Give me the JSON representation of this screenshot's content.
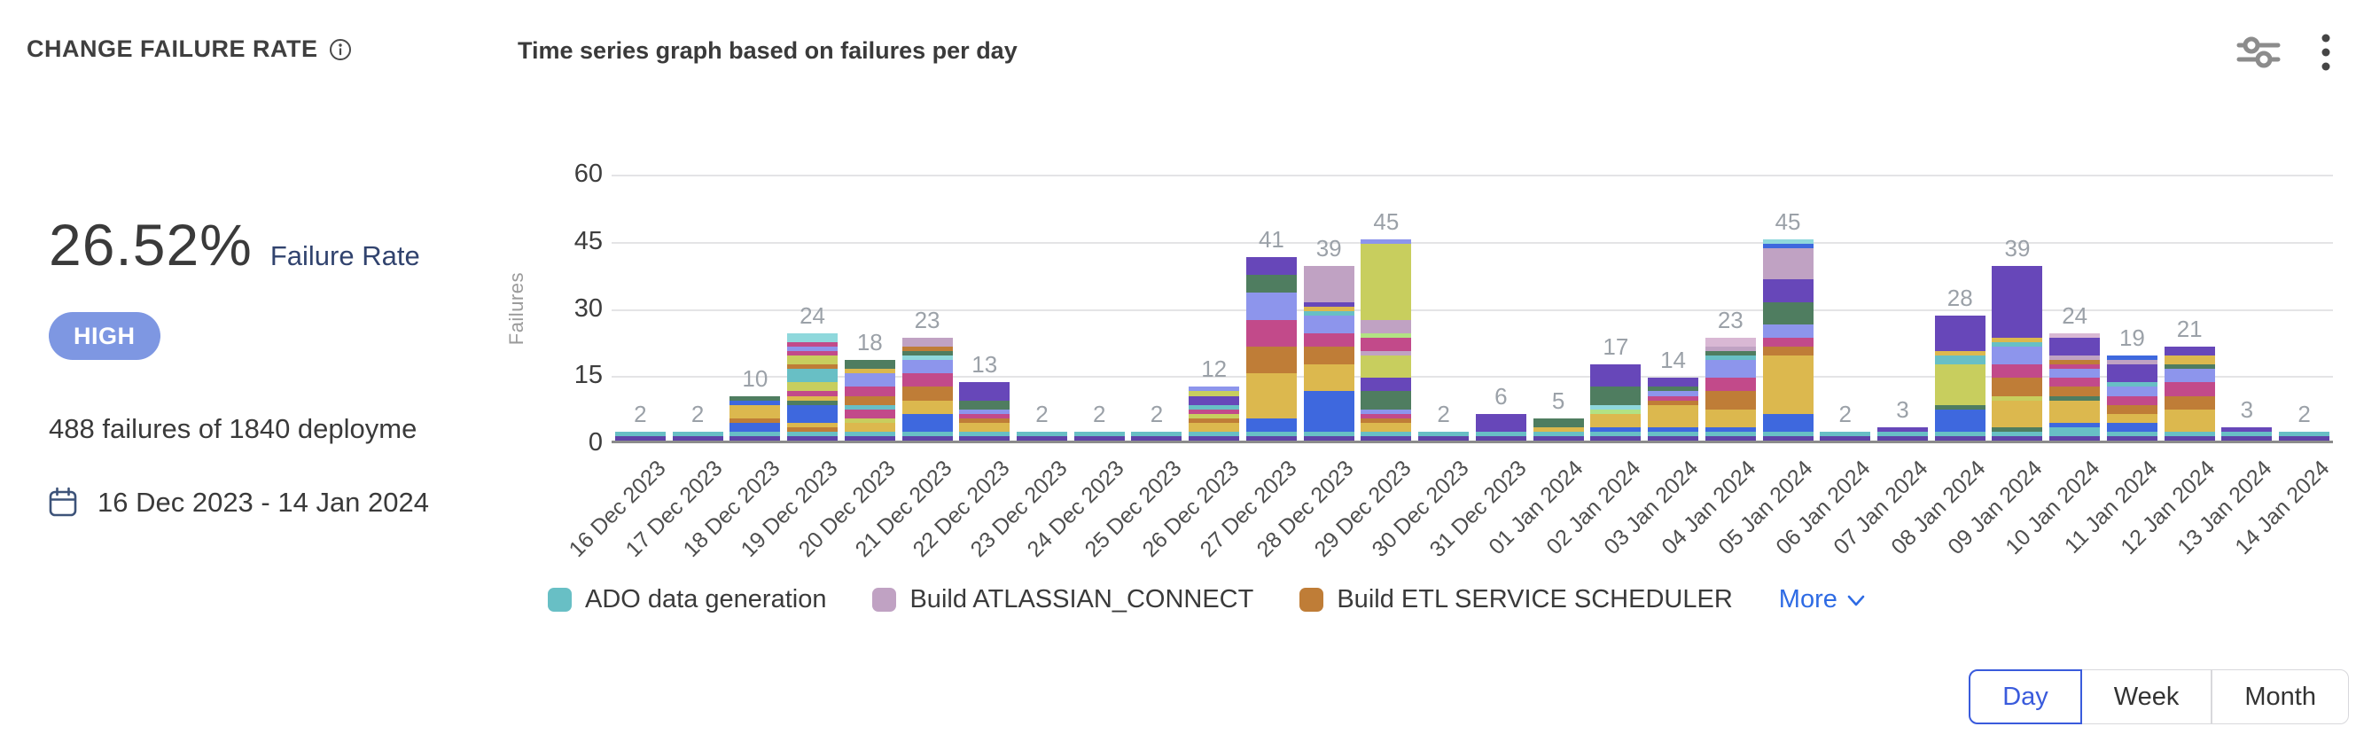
{
  "header": {
    "title": "CHANGE FAILURE RATE",
    "subtitle": "Time series graph based on failures per day"
  },
  "stats": {
    "rate_value": "26.52%",
    "rate_label": "Failure Rate",
    "severity": "HIGH",
    "failures_summary": "488 failures of 1840 deployme",
    "date_range": "16 Dec 2023 - 14 Jan 2024"
  },
  "chart_data": {
    "type": "bar",
    "stacked": true,
    "title": "Time series graph based on failures per day",
    "xlabel": "",
    "ylabel": "Failures",
    "ylim": [
      0,
      60
    ],
    "yticks": [
      0,
      15,
      30,
      45,
      60
    ],
    "grid": true,
    "legend_position": "bottom",
    "categories": [
      "16 Dec 2023",
      "17 Dec 2023",
      "18 Dec 2023",
      "19 Dec 2023",
      "20 Dec 2023",
      "21 Dec 2023",
      "22 Dec 2023",
      "23 Dec 2023",
      "24 Dec 2023",
      "25 Dec 2023",
      "26 Dec 2023",
      "27 Dec 2023",
      "28 Dec 2023",
      "29 Dec 2023",
      "30 Dec 2023",
      "31 Dec 2023",
      "01 Jan 2024",
      "02 Jan 2024",
      "03 Jan 2024",
      "04 Jan 2024",
      "05 Jan 2024",
      "06 Jan 2024",
      "07 Jan 2024",
      "08 Jan 2024",
      "09 Jan 2024",
      "10 Jan 2024",
      "11 Jan 2024",
      "12 Jan 2024",
      "13 Jan 2024",
      "14 Jan 2024"
    ],
    "totals": [
      2,
      2,
      10,
      24,
      18,
      23,
      13,
      2,
      2,
      2,
      12,
      41,
      39,
      45,
      2,
      6,
      5,
      17,
      14,
      23,
      45,
      2,
      3,
      28,
      39,
      24,
      19,
      21,
      3,
      2
    ],
    "palette": [
      "#5f43a8",
      "#68bfc5",
      "#3e68de",
      "#dcb84e",
      "#bf7d37",
      "#c24a8a",
      "#c8ce5e",
      "#4f7d60",
      "#8d95ec",
      "#6747b9",
      "#c0a2c3",
      "#b2e284",
      "#8fd8dc",
      "#d9b8d4"
    ],
    "segments": [
      [
        [
          0,
          1
        ],
        [
          1,
          1
        ]
      ],
      [
        [
          0,
          1
        ],
        [
          1,
          1
        ]
      ],
      [
        [
          0,
          1
        ],
        [
          1,
          1
        ],
        [
          2,
          2
        ],
        [
          4,
          1
        ],
        [
          3,
          3
        ],
        [
          2,
          1
        ],
        [
          7,
          1
        ]
      ],
      [
        [
          0,
          1
        ],
        [
          1,
          1
        ],
        [
          4,
          1
        ],
        [
          3,
          1
        ],
        [
          2,
          4
        ],
        [
          7,
          1
        ],
        [
          3,
          1
        ],
        [
          5,
          1
        ],
        [
          6,
          2
        ],
        [
          1,
          3
        ],
        [
          4,
          1
        ],
        [
          6,
          2
        ],
        [
          5,
          1
        ],
        [
          8,
          1
        ],
        [
          5,
          1
        ],
        [
          12,
          2
        ]
      ],
      [
        [
          0,
          1
        ],
        [
          1,
          1
        ],
        [
          3,
          2
        ],
        [
          6,
          1
        ],
        [
          5,
          2
        ],
        [
          1,
          1
        ],
        [
          4,
          2
        ],
        [
          5,
          2
        ],
        [
          8,
          3
        ],
        [
          3,
          1
        ],
        [
          7,
          2
        ]
      ],
      [
        [
          0,
          1
        ],
        [
          1,
          1
        ],
        [
          2,
          4
        ],
        [
          3,
          3
        ],
        [
          4,
          3
        ],
        [
          5,
          3
        ],
        [
          8,
          3
        ],
        [
          12,
          1
        ],
        [
          7,
          1
        ],
        [
          4,
          1
        ],
        [
          10,
          2
        ]
      ],
      [
        [
          0,
          1
        ],
        [
          1,
          1
        ],
        [
          3,
          2
        ],
        [
          4,
          1
        ],
        [
          5,
          1
        ],
        [
          8,
          1
        ],
        [
          7,
          2
        ],
        [
          9,
          4
        ]
      ],
      [
        [
          0,
          1
        ],
        [
          1,
          1
        ]
      ],
      [
        [
          0,
          1
        ],
        [
          1,
          1
        ]
      ],
      [
        [
          0,
          1
        ],
        [
          1,
          1
        ]
      ],
      [
        [
          0,
          1
        ],
        [
          1,
          1
        ],
        [
          3,
          2
        ],
        [
          4,
          1
        ],
        [
          6,
          1
        ],
        [
          5,
          1
        ],
        [
          1,
          1
        ],
        [
          9,
          2
        ],
        [
          6,
          1
        ],
        [
          8,
          1
        ]
      ],
      [
        [
          0,
          1
        ],
        [
          1,
          1
        ],
        [
          2,
          3
        ],
        [
          3,
          10
        ],
        [
          4,
          6
        ],
        [
          5,
          6
        ],
        [
          8,
          6
        ],
        [
          7,
          4
        ],
        [
          9,
          4
        ]
      ],
      [
        [
          0,
          1
        ],
        [
          1,
          1
        ],
        [
          2,
          9
        ],
        [
          3,
          6
        ],
        [
          4,
          4
        ],
        [
          5,
          3
        ],
        [
          8,
          4
        ],
        [
          1,
          1
        ],
        [
          3,
          1
        ],
        [
          9,
          1
        ],
        [
          10,
          8
        ]
      ],
      [
        [
          0,
          1
        ],
        [
          1,
          1
        ],
        [
          3,
          2
        ],
        [
          4,
          1
        ],
        [
          5,
          1
        ],
        [
          8,
          1
        ],
        [
          7,
          4
        ],
        [
          9,
          3
        ],
        [
          6,
          5
        ],
        [
          10,
          1
        ],
        [
          5,
          3
        ],
        [
          11,
          1
        ],
        [
          10,
          3
        ],
        [
          6,
          17
        ],
        [
          8,
          1
        ]
      ],
      [
        [
          0,
          1
        ],
        [
          1,
          1
        ]
      ],
      [
        [
          0,
          1
        ],
        [
          1,
          1
        ],
        [
          9,
          4
        ]
      ],
      [
        [
          0,
          1
        ],
        [
          1,
          1
        ],
        [
          3,
          1
        ],
        [
          7,
          2
        ]
      ],
      [
        [
          0,
          1
        ],
        [
          1,
          1
        ],
        [
          2,
          1
        ],
        [
          3,
          3
        ],
        [
          11,
          1
        ],
        [
          12,
          1
        ],
        [
          7,
          4
        ],
        [
          9,
          5
        ]
      ],
      [
        [
          0,
          1
        ],
        [
          1,
          1
        ],
        [
          2,
          1
        ],
        [
          3,
          5
        ],
        [
          4,
          1
        ],
        [
          5,
          1
        ],
        [
          8,
          1
        ],
        [
          7,
          1
        ],
        [
          9,
          2
        ]
      ],
      [
        [
          0,
          1
        ],
        [
          1,
          1
        ],
        [
          2,
          1
        ],
        [
          3,
          4
        ],
        [
          4,
          4
        ],
        [
          5,
          3
        ],
        [
          8,
          4
        ],
        [
          1,
          1
        ],
        [
          7,
          1
        ],
        [
          10,
          1
        ],
        [
          13,
          2
        ]
      ],
      [
        [
          0,
          1
        ],
        [
          1,
          1
        ],
        [
          2,
          4
        ],
        [
          3,
          13
        ],
        [
          4,
          2
        ],
        [
          5,
          2
        ],
        [
          8,
          3
        ],
        [
          7,
          5
        ],
        [
          9,
          5
        ],
        [
          10,
          7
        ],
        [
          2,
          1
        ],
        [
          12,
          1
        ]
      ],
      [
        [
          0,
          1
        ],
        [
          1,
          1
        ]
      ],
      [
        [
          0,
          1
        ],
        [
          1,
          1
        ],
        [
          9,
          1
        ]
      ],
      [
        [
          0,
          1
        ],
        [
          1,
          1
        ],
        [
          2,
          5
        ],
        [
          7,
          1
        ],
        [
          6,
          9
        ],
        [
          1,
          2
        ],
        [
          3,
          1
        ],
        [
          9,
          8
        ]
      ],
      [
        [
          0,
          1
        ],
        [
          1,
          1
        ],
        [
          7,
          1
        ],
        [
          3,
          6
        ],
        [
          6,
          1
        ],
        [
          4,
          4
        ],
        [
          5,
          3
        ],
        [
          8,
          4
        ],
        [
          1,
          1
        ],
        [
          3,
          1
        ],
        [
          9,
          16
        ]
      ],
      [
        [
          0,
          1
        ],
        [
          1,
          2
        ],
        [
          2,
          1
        ],
        [
          3,
          5
        ],
        [
          7,
          1
        ],
        [
          4,
          2
        ],
        [
          5,
          2
        ],
        [
          8,
          2
        ],
        [
          5,
          1
        ],
        [
          4,
          1
        ],
        [
          10,
          1
        ],
        [
          9,
          4
        ],
        [
          13,
          1
        ]
      ],
      [
        [
          0,
          1
        ],
        [
          1,
          1
        ],
        [
          2,
          2
        ],
        [
          3,
          2
        ],
        [
          4,
          2
        ],
        [
          5,
          2
        ],
        [
          8,
          2
        ],
        [
          1,
          1
        ],
        [
          9,
          4
        ],
        [
          10,
          1
        ],
        [
          2,
          1
        ]
      ],
      [
        [
          0,
          1
        ],
        [
          1,
          1
        ],
        [
          3,
          5
        ],
        [
          4,
          3
        ],
        [
          5,
          3
        ],
        [
          8,
          3
        ],
        [
          7,
          1
        ],
        [
          3,
          2
        ],
        [
          9,
          2
        ]
      ],
      [
        [
          0,
          1
        ],
        [
          1,
          1
        ],
        [
          9,
          1
        ]
      ],
      [
        [
          0,
          1
        ],
        [
          1,
          1
        ]
      ]
    ]
  },
  "legend": {
    "items": [
      {
        "label": "ADO data generation",
        "color": "#68bfc5"
      },
      {
        "label": "Build ATLASSIAN_CONNECT",
        "color": "#c0a2c3"
      },
      {
        "label": "Build ETL SERVICE SCHEDULER",
        "color": "#bf7d37"
      }
    ],
    "more_label": "More"
  },
  "granularity": {
    "options": [
      "Day",
      "Week",
      "Month"
    ],
    "selected": "Day"
  },
  "colors": {
    "badge_bg": "#7e97e2",
    "link_blue": "#2e6be4",
    "selected_blue": "#3a5bdc"
  }
}
